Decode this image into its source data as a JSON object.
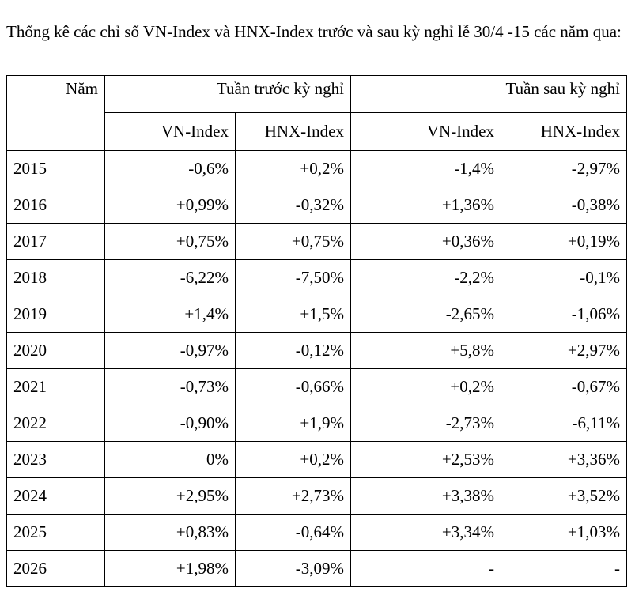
{
  "caption": "Thống kê các chỉ số VN-Index và HNX-Index trước và sau kỳ nghỉ lễ 30/4 -15 các năm qua:",
  "table": {
    "year_header": "Năm",
    "group_before": "Tuần trước kỳ nghỉ",
    "group_after": "Tuần sau kỳ nghỉ",
    "sub_headers": [
      "VN-Index",
      "HNX-Index",
      "VN-Index",
      "HNX-Index"
    ],
    "rows": [
      {
        "year": "2015",
        "cells": [
          "-0,6%",
          "+0,2%",
          "-1,4%",
          "-2,97%"
        ]
      },
      {
        "year": "2016",
        "cells": [
          "+0,99%",
          "-0,32%",
          "+1,36%",
          "-0,38%"
        ]
      },
      {
        "year": "2017",
        "cells": [
          "+0,75%",
          "+0,75%",
          "+0,36%",
          "+0,19%"
        ]
      },
      {
        "year": "2018",
        "cells": [
          "-6,22%",
          "-7,50%",
          "-2,2%",
          "-0,1%"
        ]
      },
      {
        "year": "2019",
        "cells": [
          "+1,4%",
          "+1,5%",
          "-2,65%",
          "-1,06%"
        ]
      },
      {
        "year": "2020",
        "cells": [
          "-0,97%",
          "-0,12%",
          "+5,8%",
          "+2,97%"
        ]
      },
      {
        "year": "2021",
        "cells": [
          "-0,73%",
          "-0,66%",
          "+0,2%",
          "-0,67%"
        ]
      },
      {
        "year": "2022",
        "cells": [
          "-0,90%",
          "+1,9%",
          "-2,73%",
          "-6,11%"
        ]
      },
      {
        "year": "2023",
        "cells": [
          "0%",
          "+0,2%",
          "+2,53%",
          "+3,36%"
        ]
      },
      {
        "year": "2024",
        "cells": [
          "+2,95%",
          "+2,73%",
          "+3,38%",
          "+3,52%"
        ]
      },
      {
        "year": "2025",
        "cells": [
          "+0,83%",
          "-0,64%",
          "+3,34%",
          "+1,03%"
        ]
      },
      {
        "year": "2026",
        "cells": [
          "+1,98%",
          "-3,09%",
          "-",
          "-"
        ]
      }
    ]
  }
}
